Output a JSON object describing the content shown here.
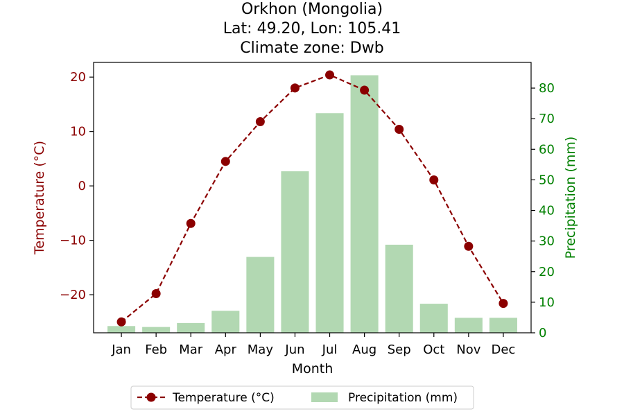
{
  "title": {
    "line1": "Orkhon (Mongolia)",
    "line2": "Lat: 49.20, Lon: 105.41",
    "line3": "Climate zone: Dwb"
  },
  "colors": {
    "temperature": "#8b0000",
    "precipitation": "#b2d8b2",
    "precip_axis": "#008000"
  },
  "chart_data": {
    "type": "bar",
    "categories": [
      "Jan",
      "Feb",
      "Mar",
      "Apr",
      "May",
      "Jun",
      "Jul",
      "Aug",
      "Sep",
      "Oct",
      "Nov",
      "Dec"
    ],
    "series": [
      {
        "name": "Temperature (°C)",
        "type": "line",
        "axis": "left",
        "values": [
          -25.0,
          -19.8,
          -6.9,
          4.5,
          11.8,
          18.0,
          20.4,
          17.6,
          10.4,
          1.1,
          -11.1,
          -21.6
        ]
      },
      {
        "name": "Precipitation (mm)",
        "type": "bar",
        "axis": "right",
        "values": [
          2.2,
          1.9,
          3.2,
          7.2,
          24.8,
          52.8,
          71.8,
          84.2,
          28.8,
          9.5,
          4.9,
          4.9
        ]
      }
    ],
    "xlabel": "Month",
    "ylabel_left": "Temperature (°C)",
    "ylabel_right": "Precipitation (mm)",
    "ylim_left": [
      -27.0,
      22.7
    ],
    "ylim_right": [
      0,
      88.4
    ],
    "yticks_left": [
      -20,
      -10,
      0,
      10,
      20
    ],
    "yticks_right": [
      0,
      10,
      20,
      30,
      40,
      50,
      60,
      70,
      80
    ],
    "yticks_left_labels": [
      "−20",
      "−10",
      "0",
      "10",
      "20"
    ],
    "grid": false,
    "legend_position": "bottom-center"
  }
}
